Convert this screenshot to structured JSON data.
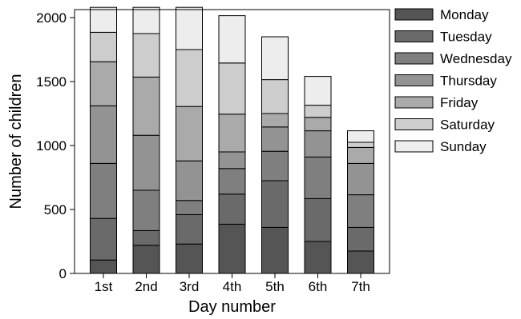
{
  "chart_data": {
    "type": "bar",
    "stacked": true,
    "title": "",
    "xlabel": "Day number",
    "ylabel": "Number of children",
    "ylim": [
      0,
      2000
    ],
    "yticks": [
      0,
      500,
      1000,
      1500,
      2000
    ],
    "legend_position": "right",
    "grid": false,
    "categories": [
      "1st",
      "2nd",
      "3rd",
      "4th",
      "5th",
      "6th",
      "7th"
    ],
    "series": [
      {
        "name": "Monday",
        "color": "#555555",
        "values": [
          105,
          220,
          230,
          385,
          360,
          250,
          175
        ]
      },
      {
        "name": "Tuesday",
        "color": "#6a6a6a",
        "values": [
          325,
          115,
          230,
          235,
          365,
          335,
          185
        ]
      },
      {
        "name": "Wednesday",
        "color": "#7f7f7f",
        "values": [
          430,
          315,
          110,
          200,
          230,
          325,
          255
        ]
      },
      {
        "name": "Thursday",
        "color": "#939393",
        "values": [
          450,
          430,
          310,
          130,
          190,
          205,
          245
        ]
      },
      {
        "name": "Friday",
        "color": "#aaaaaa",
        "values": [
          345,
          455,
          425,
          295,
          105,
          105,
          125
        ]
      },
      {
        "name": "Saturday",
        "color": "#cdcdcd",
        "values": [
          230,
          340,
          445,
          400,
          265,
          95,
          40
        ]
      },
      {
        "name": "Sunday",
        "color": "#ededed",
        "values": [
          195,
          205,
          330,
          370,
          335,
          225,
          90
        ]
      }
    ]
  }
}
